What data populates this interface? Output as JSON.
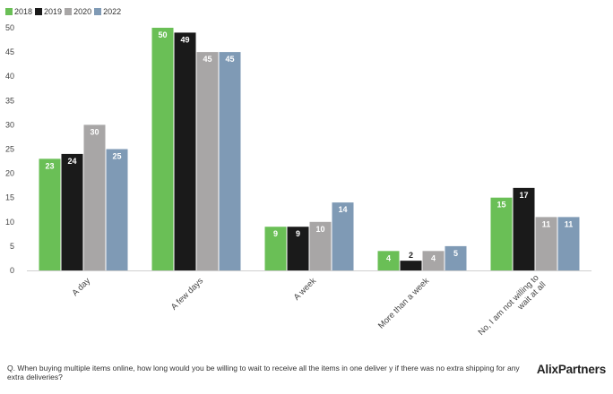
{
  "chart_data": {
    "type": "bar",
    "categories": [
      "A day",
      "A few days",
      "A week",
      "More than a week",
      "No, I am not willing to wait at all"
    ],
    "category_lines": [
      [
        "A day"
      ],
      [
        "A few days"
      ],
      [
        "A week"
      ],
      [
        "More than a week"
      ],
      [
        "No, I am not willing to",
        "wait at all"
      ]
    ],
    "series": [
      {
        "name": "2018",
        "color": "#6abf56",
        "values": [
          23,
          50,
          9,
          4,
          15
        ]
      },
      {
        "name": "2019",
        "color": "#1a1a1a",
        "values": [
          24,
          49,
          9,
          2,
          17
        ]
      },
      {
        "name": "2020",
        "color": "#a8a6a6",
        "values": [
          30,
          45,
          10,
          4,
          11
        ]
      },
      {
        "name": "2022",
        "color": "#7f9ab5",
        "values": [
          25,
          45,
          14,
          5,
          11
        ]
      }
    ],
    "yticks": [
      0,
      5,
      10,
      15,
      20,
      25,
      30,
      35,
      40,
      45,
      50
    ],
    "ylim": [
      0,
      50
    ],
    "grid": false,
    "legend": "top-left",
    "data_labels": true
  },
  "footer": {
    "question": "Q. When buying multiple items online, how long would you be willing to wait to receive all the items in one deliver y if there was no extra shipping for any extra deliveries?",
    "logo": "AlixPartners"
  }
}
